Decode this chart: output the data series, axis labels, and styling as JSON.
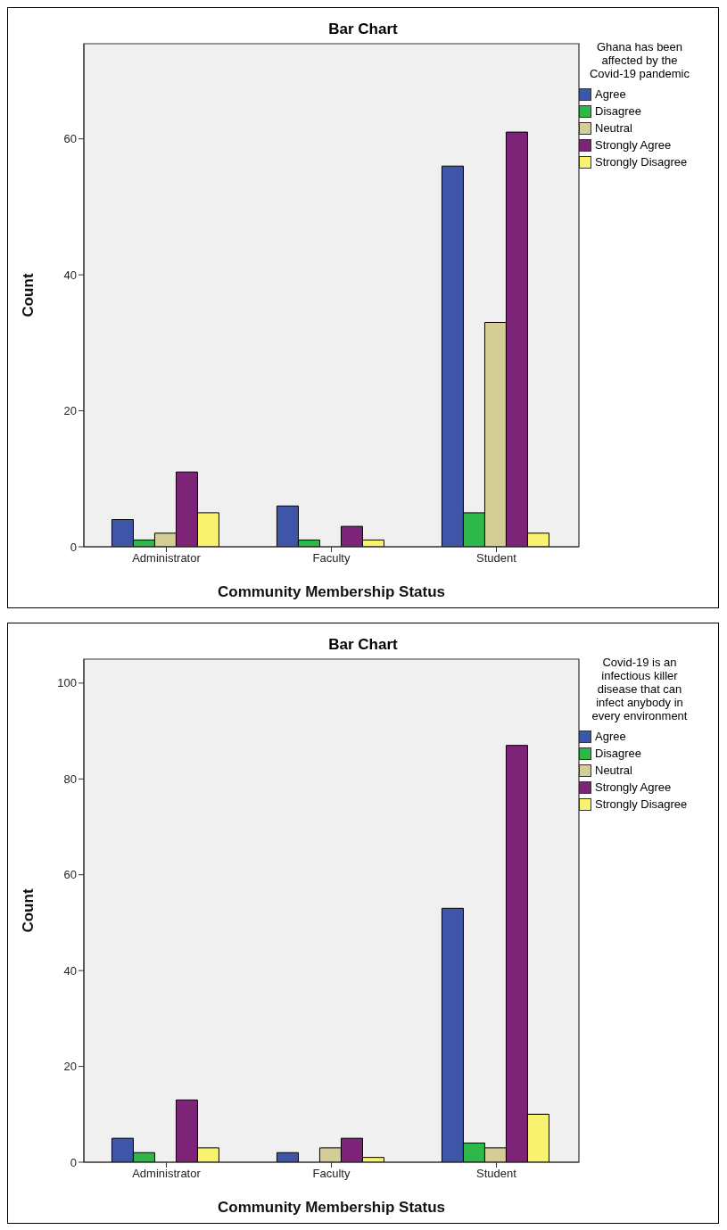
{
  "chart_data": [
    {
      "type": "bar",
      "title": "Bar Chart",
      "xlabel": "Community Membership Status",
      "ylabel": "Count",
      "legend_title": "Ghana has been affected by the Covid-19 pandemic",
      "categories": [
        "Administrator",
        "Faculty",
        "Student"
      ],
      "series": [
        {
          "name": "Agree",
          "color": "#3f56a8",
          "values": [
            4,
            6,
            56
          ]
        },
        {
          "name": "Disagree",
          "color": "#2fb84a",
          "values": [
            1,
            1,
            5
          ]
        },
        {
          "name": "Neutral",
          "color": "#d4cd96",
          "values": [
            2,
            null,
            33
          ]
        },
        {
          "name": "Strongly Agree",
          "color": "#7d2479",
          "values": [
            11,
            3,
            61
          ]
        },
        {
          "name": "Strongly Disagree",
          "color": "#f8f36e",
          "values": [
            5,
            1,
            2
          ]
        }
      ],
      "ylim": [
        0,
        74
      ],
      "yticks": [
        0,
        20,
        40,
        60
      ],
      "grid": false,
      "legend": "right"
    },
    {
      "type": "bar",
      "title": "Bar Chart",
      "xlabel": "Community Membership Status",
      "ylabel": "Count",
      "legend_title": "Covid-19 is an infectious killer disease that can infect anybody in every environment",
      "categories": [
        "Administrator",
        "Faculty",
        "Student"
      ],
      "series": [
        {
          "name": "Agree",
          "color": "#3f56a8",
          "values": [
            5,
            2,
            53
          ]
        },
        {
          "name": "Disagree",
          "color": "#2fb84a",
          "values": [
            2,
            null,
            4
          ]
        },
        {
          "name": "Neutral",
          "color": "#d4cd96",
          "values": [
            null,
            3,
            3
          ]
        },
        {
          "name": "Strongly Agree",
          "color": "#7d2479",
          "values": [
            13,
            5,
            87
          ]
        },
        {
          "name": "Strongly Disagree",
          "color": "#f8f36e",
          "values": [
            3,
            1,
            10
          ]
        }
      ],
      "ylim": [
        0,
        105
      ],
      "yticks": [
        0,
        20,
        40,
        60,
        80,
        100
      ],
      "grid": false,
      "legend": "right"
    }
  ]
}
